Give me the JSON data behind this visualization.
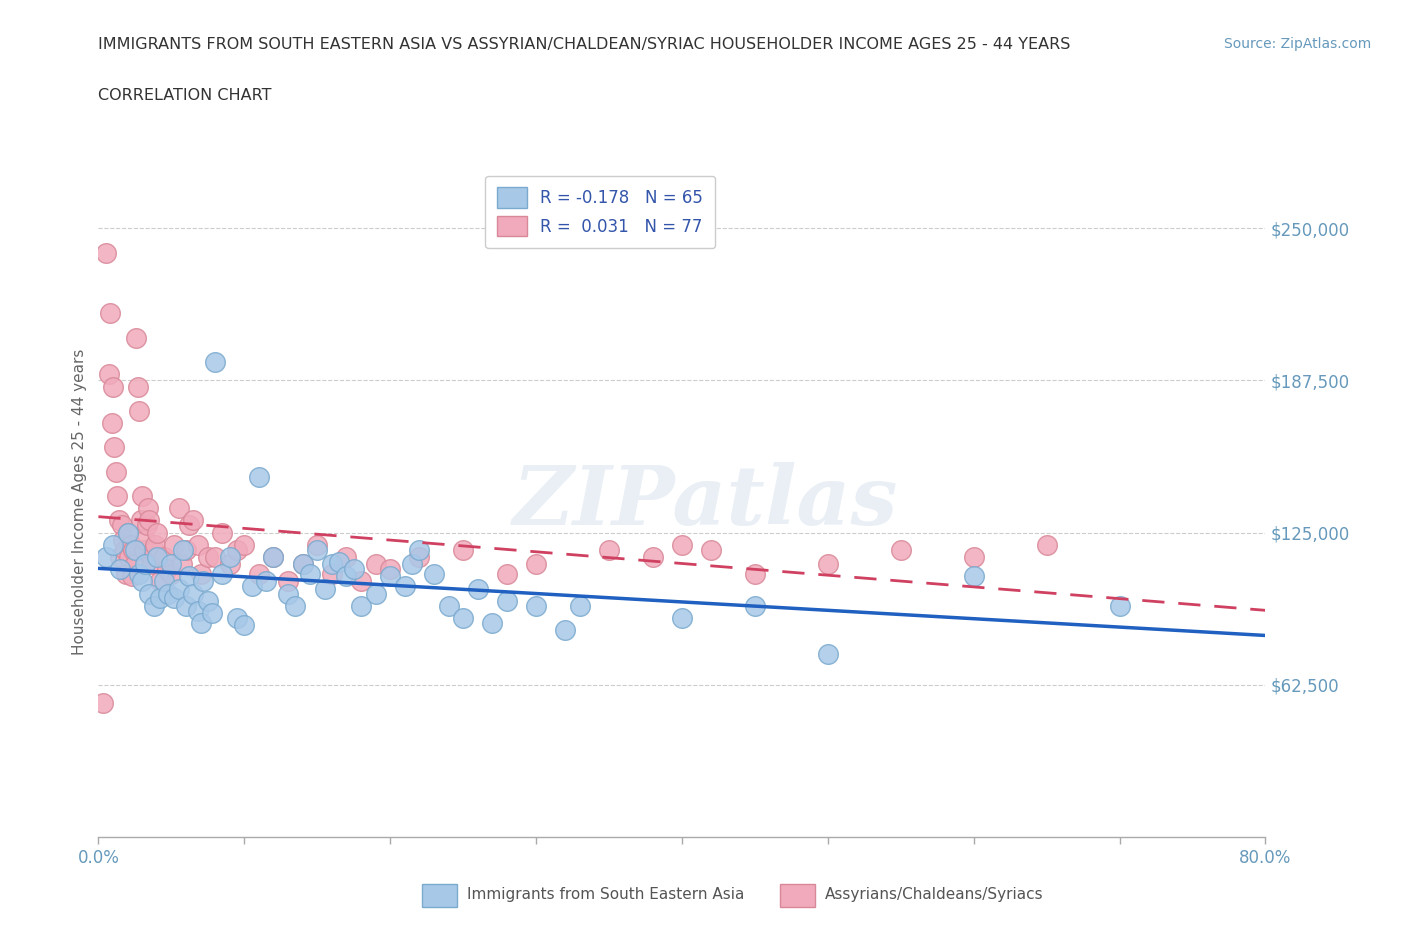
{
  "title_line1": "IMMIGRANTS FROM SOUTH EASTERN ASIA VS ASSYRIAN/CHALDEAN/SYRIAC HOUSEHOLDER INCOME AGES 25 - 44 YEARS",
  "title_line2": "CORRELATION CHART",
  "source_text": "Source: ZipAtlas.com",
  "watermark": "ZIPatlas",
  "ylabel": "Householder Income Ages 25 - 44 years",
  "xlim": [
    0.0,
    0.8
  ],
  "ylim": [
    0,
    275000
  ],
  "yticks": [
    62500,
    125000,
    187500,
    250000
  ],
  "ytick_labels": [
    "$62,500",
    "$125,000",
    "$187,500",
    "$250,000"
  ],
  "xtick_labels": [
    "0.0%",
    "",
    "",
    "",
    "",
    "",
    "",
    "",
    "80.0%"
  ],
  "series1_color": "#A8C8E8",
  "series1_edge": "#7AAACE",
  "series1_label": "Immigrants from South Eastern Asia",
  "series1_R": "-0.178",
  "series1_N": "65",
  "series2_color": "#F0AABB",
  "series2_edge": "#D88898",
  "series2_label": "Assyrians/Chaldeans/Syriacs",
  "series2_R": "0.031",
  "series2_N": "77",
  "trend1_color": "#2060C0",
  "trend2_color": "#D04060",
  "grid_color": "#CCCCCC",
  "axis_color": "#6699BB",
  "legend_R_color": "#3355AA",
  "background_color": "#FFFFFF",
  "blue_scatter_x": [
    0.005,
    0.01,
    0.015,
    0.02,
    0.025,
    0.028,
    0.03,
    0.032,
    0.035,
    0.038,
    0.04,
    0.042,
    0.045,
    0.048,
    0.05,
    0.052,
    0.055,
    0.058,
    0.06,
    0.062,
    0.065,
    0.068,
    0.07,
    0.072,
    0.075,
    0.078,
    0.08,
    0.085,
    0.09,
    0.095,
    0.1,
    0.105,
    0.11,
    0.115,
    0.12,
    0.13,
    0.135,
    0.14,
    0.145,
    0.15,
    0.155,
    0.16,
    0.165,
    0.17,
    0.175,
    0.18,
    0.19,
    0.2,
    0.21,
    0.215,
    0.22,
    0.23,
    0.24,
    0.25,
    0.26,
    0.27,
    0.28,
    0.3,
    0.32,
    0.33,
    0.4,
    0.45,
    0.5,
    0.6,
    0.7
  ],
  "blue_scatter_y": [
    115000,
    120000,
    110000,
    125000,
    118000,
    108000,
    105000,
    112000,
    100000,
    95000,
    115000,
    98000,
    105000,
    100000,
    112000,
    98000,
    102000,
    118000,
    95000,
    107000,
    100000,
    93000,
    88000,
    105000,
    97000,
    92000,
    195000,
    108000,
    115000,
    90000,
    87000,
    103000,
    148000,
    105000,
    115000,
    100000,
    95000,
    112000,
    108000,
    118000,
    102000,
    112000,
    113000,
    107000,
    110000,
    95000,
    100000,
    107000,
    103000,
    112000,
    118000,
    108000,
    95000,
    90000,
    102000,
    88000,
    97000,
    95000,
    85000,
    95000,
    90000,
    95000,
    75000,
    107000,
    95000
  ],
  "pink_scatter_x": [
    0.003,
    0.005,
    0.007,
    0.008,
    0.009,
    0.01,
    0.011,
    0.012,
    0.013,
    0.014,
    0.015,
    0.016,
    0.017,
    0.018,
    0.019,
    0.02,
    0.021,
    0.022,
    0.023,
    0.024,
    0.025,
    0.026,
    0.027,
    0.028,
    0.029,
    0.03,
    0.031,
    0.032,
    0.033,
    0.034,
    0.035,
    0.036,
    0.037,
    0.038,
    0.039,
    0.04,
    0.042,
    0.045,
    0.047,
    0.05,
    0.052,
    0.055,
    0.057,
    0.06,
    0.062,
    0.065,
    0.068,
    0.07,
    0.075,
    0.08,
    0.085,
    0.09,
    0.095,
    0.1,
    0.11,
    0.12,
    0.13,
    0.14,
    0.15,
    0.16,
    0.17,
    0.18,
    0.19,
    0.2,
    0.22,
    0.25,
    0.28,
    0.3,
    0.35,
    0.38,
    0.4,
    0.42,
    0.45,
    0.5,
    0.55,
    0.6,
    0.65
  ],
  "pink_scatter_y": [
    55000,
    240000,
    190000,
    215000,
    170000,
    185000,
    160000,
    150000,
    140000,
    130000,
    115000,
    128000,
    122000,
    118000,
    108000,
    125000,
    115000,
    120000,
    107000,
    118000,
    112000,
    205000,
    185000,
    175000,
    130000,
    140000,
    118000,
    122000,
    128000,
    135000,
    130000,
    115000,
    112000,
    118000,
    120000,
    125000,
    105000,
    115000,
    110000,
    108000,
    120000,
    135000,
    112000,
    118000,
    128000,
    130000,
    120000,
    108000,
    115000,
    115000,
    125000,
    112000,
    118000,
    120000,
    108000,
    115000,
    105000,
    112000,
    120000,
    108000,
    115000,
    105000,
    112000,
    110000,
    115000,
    118000,
    108000,
    112000,
    118000,
    115000,
    120000,
    118000,
    108000,
    112000,
    118000,
    115000,
    120000
  ]
}
